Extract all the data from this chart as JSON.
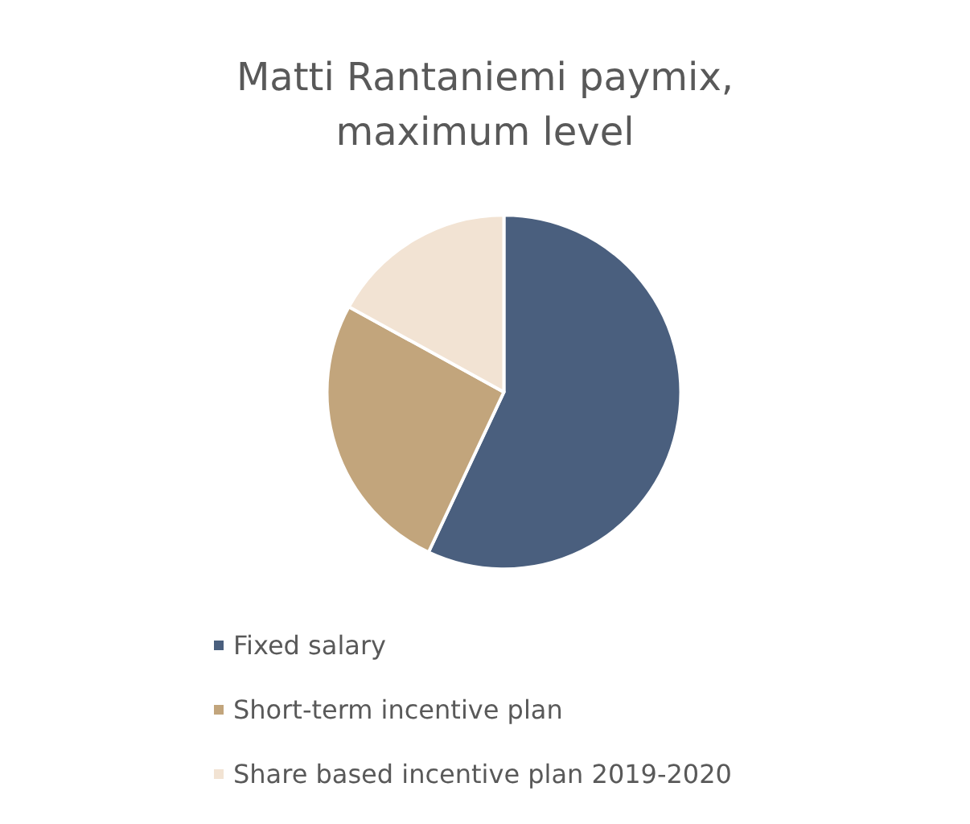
{
  "chart_data": {
    "type": "pie",
    "title": "Matti Rantaniemi paymix,\nmaximum level",
    "categories": [
      "Fixed salary",
      "Short-term incentive plan",
      "Share based incentive plan 2019-2020"
    ],
    "values": [
      57,
      26,
      17
    ],
    "colors": [
      "#4a5f7e",
      "#c2a57c",
      "#f2e3d3"
    ],
    "legend": "bottom"
  }
}
